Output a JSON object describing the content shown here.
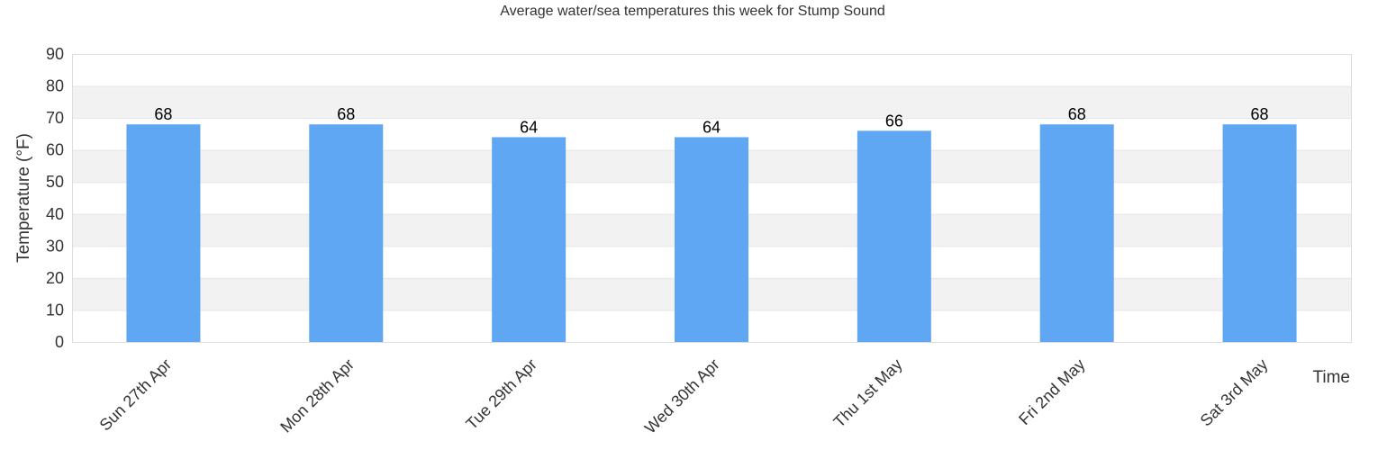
{
  "chart_data": {
    "type": "bar",
    "title": "Average water/sea temperatures this week for Stump Sound",
    "xlabel": "Time",
    "ylabel": "Temperature (°F)",
    "categories": [
      "Sun 27th Apr",
      "Mon 28th Apr",
      "Tue 29th Apr",
      "Wed 30th Apr",
      "Thu 1st May",
      "Fri 2nd May",
      "Sat 3rd May"
    ],
    "values": [
      68,
      68,
      64,
      64,
      66,
      68,
      68
    ],
    "ylim": [
      0,
      90
    ],
    "yticks": [
      0,
      10,
      20,
      30,
      40,
      50,
      60,
      70,
      80,
      90
    ],
    "bar_color": "#60a7f3",
    "band_color": "#f2f2f2",
    "grid": true,
    "data_labels": true
  }
}
